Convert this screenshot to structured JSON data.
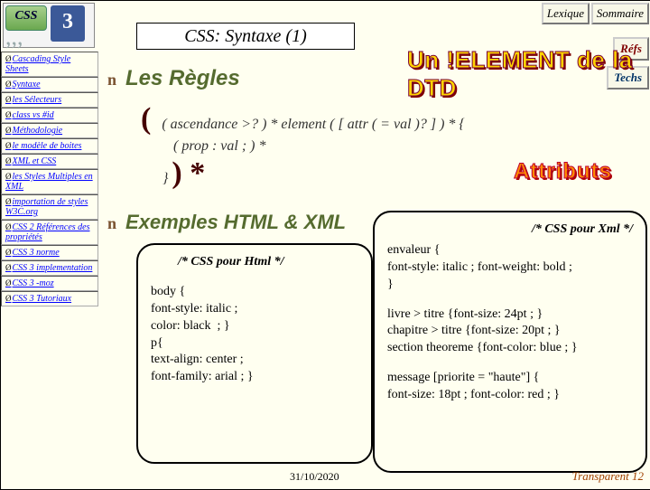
{
  "nav": {
    "lexique": "Lexique",
    "sommaire": "Sommaire",
    "refs": "Réfs",
    "techs": "Techs"
  },
  "title": "CSS: Syntaxe (1)",
  "wordart": {
    "element": "Un !ELEMENT de la DTD",
    "attributs": "Attributs"
  },
  "sidebar": [
    "Cascading Style Sheets",
    "Syntaxe",
    "les Sélecteurs",
    "class vs #id",
    "Méthodologie",
    "le modèle de boites",
    "XML et CSS",
    "les Styles Multiples en XML",
    "importation de styles W3C.org",
    "CSS 2  Références des propriétés",
    "CSS 3 norme",
    "CSS 3 implementation",
    "CSS 3 -moz",
    "CSS 3 Tutoriaux"
  ],
  "sections": {
    "rules": "Les Règles",
    "examples": "Exemples HTML & XML"
  },
  "grammar": {
    "l1": "( ascendance >? ) * element ( [ attr ( = val )? ] ) * {",
    "l2": "( prop : val ; ) *",
    "l3": "} ",
    "star": ") *"
  },
  "htmlbox": {
    "comment": "/* CSS pour Html */",
    "code": "body {\nfont-style: italic ;\ncolor: black  ; }\np{\ntext-align: center ;\nfont-family: arial ; }"
  },
  "xmlbox": {
    "comment": "/* CSS pour Xml */",
    "code1": "envaleur {\nfont-style: italic ; font-weight: bold ;\n}",
    "code2": "livre > titre {font-size: 24pt ; }\nchapitre > titre {font-size: 20pt ; }\nsection theoreme {font-color: blue ; }",
    "code3": "message [priorite = \"haute\"] {\nfont-size: 18pt ; font-color: red ; }"
  },
  "footer": {
    "date": "31/10/2020",
    "transp": "Transparent 12"
  },
  "colors": {
    "heading": "#556b2f",
    "accent": "#a04000"
  }
}
